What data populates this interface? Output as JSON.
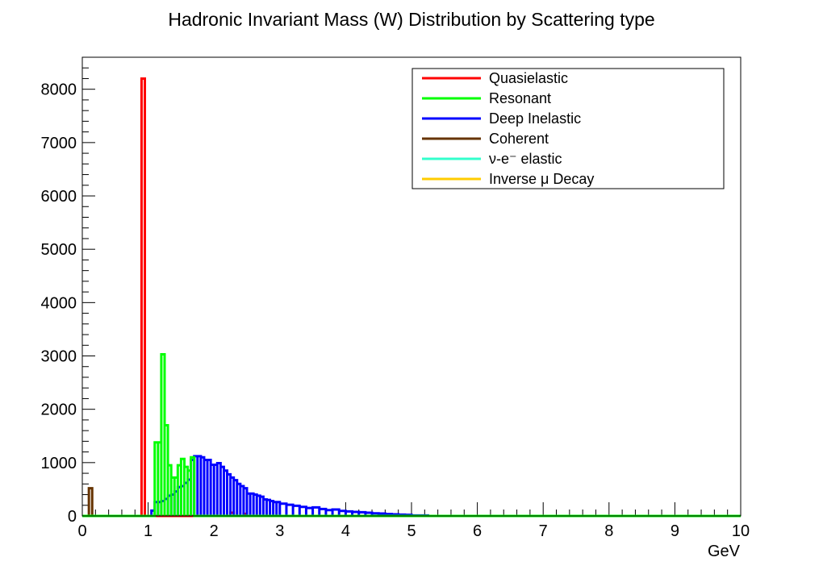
{
  "chart_data": {
    "type": "line",
    "title": "Hadronic Invariant Mass (W) Distribution by Scattering type",
    "xlabel": "GeV",
    "ylabel": "",
    "xlim": [
      0,
      10
    ],
    "ylim": [
      0,
      8600
    ],
    "xticks": [
      "0",
      "1",
      "2",
      "3",
      "4",
      "5",
      "6",
      "7",
      "8",
      "9",
      "10"
    ],
    "yticks": [
      "0",
      "1000",
      "2000",
      "3000",
      "4000",
      "5000",
      "6000",
      "7000",
      "8000"
    ],
    "grid": false,
    "legend_position": "top-right",
    "bin_width": 0.05,
    "series": [
      {
        "name": "Quasielastic",
        "color": "#ff0000",
        "bins": [
          [
            0.9,
            0.95,
            8200
          ],
          [
            2.25,
            2.3,
            60
          ],
          [
            2.45,
            2.5,
            40
          ]
        ]
      },
      {
        "name": "Resonant",
        "color": "#00ff00",
        "bins": [
          [
            1.1,
            1.15,
            1380
          ],
          [
            1.15,
            1.2,
            1380
          ],
          [
            1.2,
            1.25,
            3030
          ],
          [
            1.25,
            1.3,
            1700
          ],
          [
            1.3,
            1.35,
            950
          ],
          [
            1.35,
            1.4,
            720
          ],
          [
            1.4,
            1.45,
            720
          ],
          [
            1.45,
            1.5,
            950
          ],
          [
            1.5,
            1.55,
            1070
          ],
          [
            1.55,
            1.6,
            920
          ],
          [
            1.6,
            1.65,
            850
          ],
          [
            1.65,
            1.7,
            1100
          ]
        ]
      },
      {
        "name": "Deep Inelastic",
        "color": "#0000ff",
        "bins": [
          [
            1.05,
            1.1,
            100
          ],
          [
            1.1,
            1.15,
            260
          ],
          [
            1.15,
            1.2,
            260
          ],
          [
            1.2,
            1.25,
            280
          ],
          [
            1.25,
            1.3,
            320
          ],
          [
            1.3,
            1.35,
            380
          ],
          [
            1.35,
            1.4,
            400
          ],
          [
            1.4,
            1.45,
            460
          ],
          [
            1.45,
            1.5,
            540
          ],
          [
            1.5,
            1.55,
            560
          ],
          [
            1.55,
            1.6,
            620
          ],
          [
            1.6,
            1.65,
            680
          ],
          [
            1.65,
            1.7,
            1050
          ],
          [
            1.7,
            1.75,
            1120
          ],
          [
            1.75,
            1.8,
            1120
          ],
          [
            1.8,
            1.85,
            1100
          ],
          [
            1.85,
            1.9,
            1050
          ],
          [
            1.9,
            1.95,
            1050
          ],
          [
            1.95,
            2.0,
            960
          ],
          [
            2.0,
            2.05,
            960
          ],
          [
            2.05,
            2.1,
            990
          ],
          [
            2.1,
            2.15,
            920
          ],
          [
            2.15,
            2.2,
            850
          ],
          [
            2.2,
            2.25,
            780
          ],
          [
            2.25,
            2.3,
            720
          ],
          [
            2.3,
            2.35,
            670
          ],
          [
            2.35,
            2.4,
            600
          ],
          [
            2.4,
            2.45,
            560
          ],
          [
            2.45,
            2.5,
            520
          ],
          [
            2.5,
            2.55,
            420
          ],
          [
            2.55,
            2.6,
            420
          ],
          [
            2.6,
            2.65,
            400
          ],
          [
            2.65,
            2.7,
            380
          ],
          [
            2.7,
            2.75,
            360
          ],
          [
            2.75,
            2.8,
            310
          ],
          [
            2.8,
            2.85,
            300
          ],
          [
            2.85,
            2.9,
            280
          ],
          [
            2.9,
            2.95,
            260
          ],
          [
            2.95,
            3.0,
            260
          ],
          [
            3.0,
            3.1,
            230
          ],
          [
            3.1,
            3.2,
            210
          ],
          [
            3.2,
            3.3,
            190
          ],
          [
            3.3,
            3.4,
            170
          ],
          [
            3.4,
            3.5,
            150
          ],
          [
            3.5,
            3.6,
            160
          ],
          [
            3.6,
            3.7,
            130
          ],
          [
            3.7,
            3.8,
            110
          ],
          [
            3.8,
            3.9,
            120
          ],
          [
            3.9,
            4.0,
            95
          ],
          [
            4.0,
            4.1,
            85
          ],
          [
            4.1,
            4.2,
            75
          ],
          [
            4.2,
            4.3,
            70
          ],
          [
            4.3,
            4.4,
            60
          ],
          [
            4.4,
            4.5,
            50
          ],
          [
            4.5,
            4.6,
            45
          ],
          [
            4.6,
            4.7,
            35
          ],
          [
            4.7,
            4.8,
            30
          ],
          [
            4.8,
            4.9,
            25
          ],
          [
            4.9,
            5.0,
            20
          ],
          [
            5.0,
            5.25,
            10
          ]
        ]
      },
      {
        "name": "Coherent",
        "color": "#663300",
        "bins": [
          [
            0.1,
            0.15,
            520
          ]
        ]
      },
      {
        "name": "ν-e⁻ elastic",
        "color": "#33ffcc",
        "bins": []
      },
      {
        "name": "Inverse μ Decay",
        "color": "#ffcc00",
        "bins": []
      }
    ]
  }
}
